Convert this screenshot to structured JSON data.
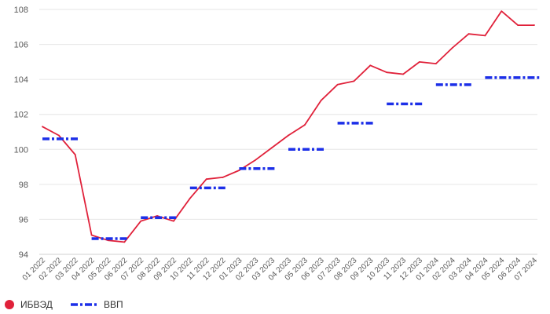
{
  "chart_data": {
    "type": "line",
    "categories": [
      "01 2022",
      "02 2022",
      "03 2022",
      "04 2022",
      "05 2022",
      "06 2022",
      "07 2022",
      "08 2022",
      "09 2022",
      "10 2022",
      "11 2022",
      "12 2022",
      "01 2023",
      "02 2023",
      "03 2023",
      "04 2023",
      "05 2023",
      "06 2023",
      "07 2023",
      "08 2023",
      "09 2023",
      "10 2023",
      "11 2023",
      "12 2023",
      "01 2024",
      "02 2024",
      "03 2024",
      "04 2024",
      "05 2024",
      "06 2024",
      "07 2024"
    ],
    "ylim": [
      94,
      108
    ],
    "yticks": [
      94,
      96,
      98,
      100,
      102,
      104,
      106,
      108
    ],
    "grid": true,
    "legend_position": "bottom-left",
    "series": [
      {
        "name": "ИБВЭД",
        "style": "solid",
        "color": "#e0213a",
        "values": [
          101.3,
          100.8,
          99.7,
          95.1,
          94.8,
          94.7,
          95.9,
          96.2,
          95.9,
          97.2,
          98.3,
          98.4,
          98.8,
          99.4,
          100.1,
          100.8,
          101.4,
          102.8,
          103.7,
          103.9,
          104.8,
          104.4,
          104.3,
          105.0,
          104.9,
          105.8,
          106.6,
          106.5,
          107.9,
          107.1,
          107.1
        ]
      },
      {
        "name": "ВВП",
        "style": "dashed-step",
        "color": "#1c2fe8",
        "values": [
          100.6,
          100.6,
          100.6,
          94.9,
          94.9,
          94.9,
          96.1,
          96.1,
          96.1,
          97.8,
          97.8,
          97.8,
          98.9,
          98.9,
          98.9,
          100.0,
          100.0,
          100.0,
          101.5,
          101.5,
          101.5,
          102.6,
          102.6,
          102.6,
          103.7,
          103.7,
          103.7,
          104.1,
          104.1,
          104.1,
          104.1
        ]
      }
    ]
  }
}
